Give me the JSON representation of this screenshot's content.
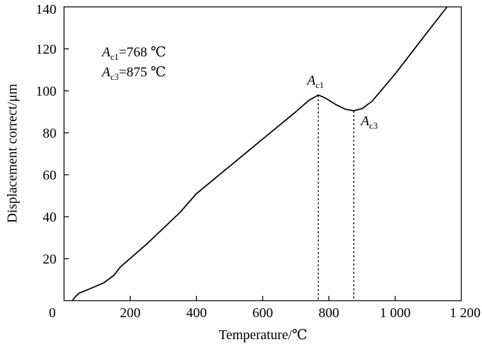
{
  "chart_data": {
    "type": "line",
    "xlabel": "Temperature/℃",
    "ylabel": "Displacement correct/μm",
    "xlim": [
      0,
      1200
    ],
    "ylim": [
      0,
      140
    ],
    "x_ticks": [
      0,
      200,
      400,
      600,
      800,
      1000,
      1200
    ],
    "x_tick_labels": [
      "0",
      "200",
      "400",
      "600",
      "800",
      "1 000",
      "1 200"
    ],
    "y_ticks": [
      20,
      40,
      60,
      80,
      100,
      120,
      140
    ],
    "y_tick_labels": [
      "20",
      "40",
      "60",
      "80",
      "100",
      "120",
      "140"
    ],
    "grid": false,
    "series": [
      {
        "points": [
          [
            25,
            0
          ],
          [
            35,
            2
          ],
          [
            45,
            3.5
          ],
          [
            80,
            5.8
          ],
          [
            120,
            8.5
          ],
          [
            150,
            12
          ],
          [
            170,
            16
          ],
          [
            250,
            27
          ],
          [
            350,
            42
          ],
          [
            400,
            51
          ],
          [
            500,
            64
          ],
          [
            600,
            77
          ],
          [
            700,
            90
          ],
          [
            740,
            95.5
          ],
          [
            768,
            98
          ],
          [
            790,
            96.5
          ],
          [
            820,
            93.5
          ],
          [
            850,
            91.2
          ],
          [
            875,
            90.5
          ],
          [
            900,
            91.5
          ],
          [
            930,
            95
          ],
          [
            1000,
            108
          ],
          [
            1100,
            128.5
          ],
          [
            1157,
            140
          ]
        ]
      }
    ],
    "annotations": {
      "ac1_label": {
        "main": "A",
        "sub": "c1",
        "rest": "=768 ℃"
      },
      "ac3_label": {
        "main": "A",
        "sub": "c3",
        "rest": "=875 ℃"
      },
      "ac1_marker": {
        "main": "A",
        "sub": "c1",
        "x": 768,
        "y": 98
      },
      "ac3_marker": {
        "main": "A",
        "sub": "c3",
        "x": 875,
        "y": 90.5
      }
    }
  }
}
